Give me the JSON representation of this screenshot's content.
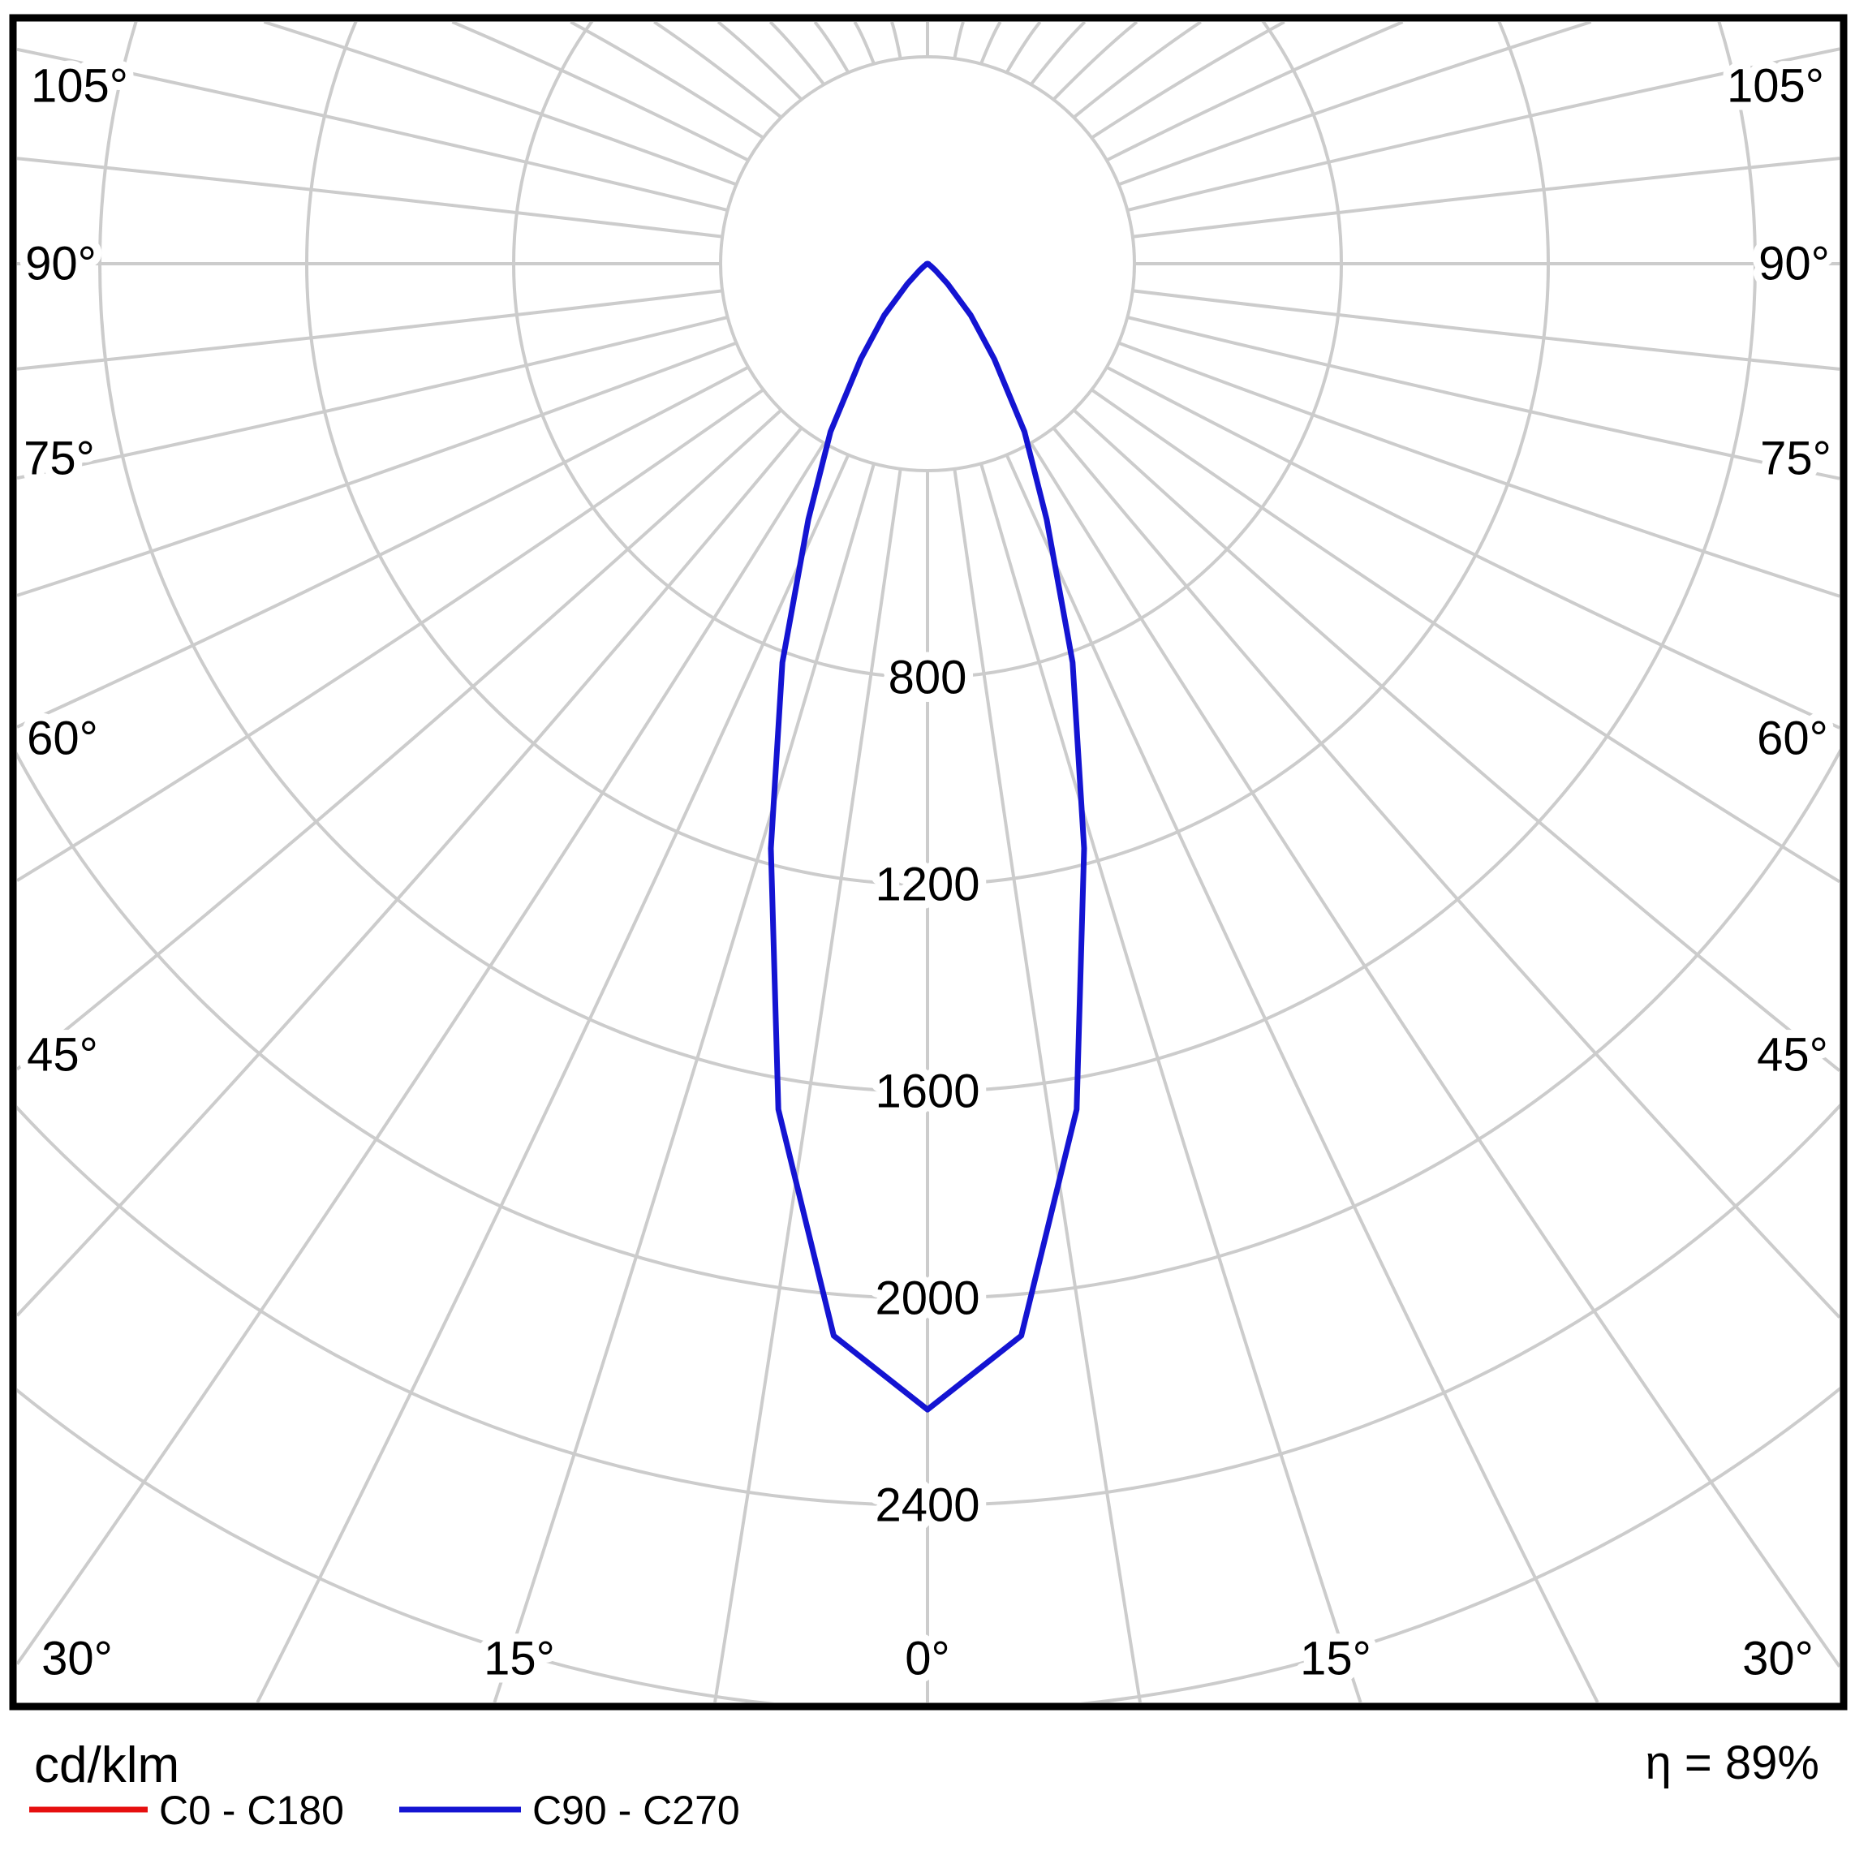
{
  "units_label": "cd/klm",
  "efficiency_label": "η = 89%",
  "legend": {
    "series": [
      {
        "label": "C0 - C180",
        "color": "#e60f0f"
      },
      {
        "label": "C90 - C270",
        "color": "#1414d2"
      }
    ]
  },
  "colors": {
    "grid": "#cccccc",
    "border": "#000000",
    "background": "#ffffff",
    "c0_curve": "#e60f0f",
    "c90_curve": "#1414d2"
  },
  "chart_data": {
    "type": "line",
    "variant": "polar-photometric-intensity",
    "title": "",
    "units": "cd/klm",
    "efficiency_text": "η = 89%",
    "angle_ticks_deg": [
      0,
      15,
      30,
      45,
      60,
      75,
      90,
      105
    ],
    "angle_grid_step_deg": 7.5,
    "radial_tick_values": [
      800,
      1200,
      1600,
      2000,
      2400
    ],
    "radial_ring_step": 400,
    "radial_max": 2800,
    "grid_on": true,
    "legend_position": "bottom-left",
    "symmetric_mirror": true,
    "series": [
      {
        "name": "C0 - C180",
        "color": "#e60f0f",
        "hidden_under": "C90 - C270",
        "angles_deg": [
          0,
          5,
          10,
          15,
          20,
          25,
          30,
          35,
          40,
          45,
          50,
          55,
          60,
          65,
          70,
          75,
          80,
          85,
          90
        ],
        "values": [
          2215,
          2080,
          1660,
          1170,
          820,
          545,
          375,
          225,
          130,
          55,
          20,
          8,
          4,
          3,
          2,
          2,
          1,
          1,
          0
        ]
      },
      {
        "name": "C90 - C270",
        "color": "#1414d2",
        "angles_deg": [
          0,
          5,
          10,
          15,
          20,
          25,
          30,
          35,
          40,
          45,
          50,
          55,
          60,
          65,
          70,
          75,
          80,
          85,
          90
        ],
        "values": [
          2215,
          2080,
          1660,
          1170,
          820,
          545,
          375,
          225,
          130,
          55,
          20,
          8,
          4,
          3,
          2,
          2,
          1,
          1,
          0
        ]
      }
    ]
  }
}
